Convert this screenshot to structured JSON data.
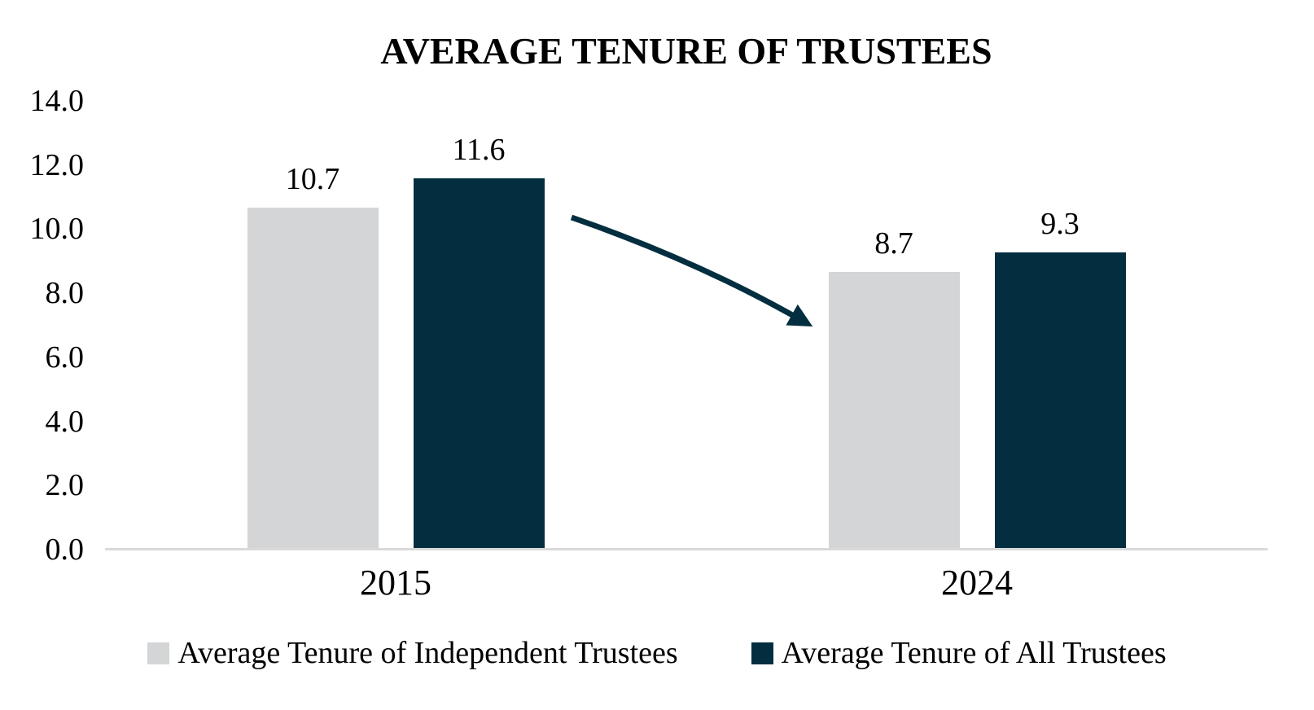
{
  "chart_data": {
    "type": "bar",
    "title": "AVERAGE TENURE OF TRUSTEES",
    "categories": [
      "2015",
      "2024"
    ],
    "series": [
      {
        "name": "Average Tenure of Independent Trustees",
        "color": "#d3d5d6",
        "values": [
          10.7,
          8.7
        ]
      },
      {
        "name": "Average Tenure of All Trustees",
        "color": "#032e40",
        "values": [
          11.6,
          9.3
        ]
      }
    ],
    "data_labels": [
      [
        "10.7",
        "11.6"
      ],
      [
        "8.7",
        "9.3"
      ]
    ],
    "ylim": [
      0,
      14
    ],
    "ytick_labels": [
      "0.0",
      "2.0",
      "4.0",
      "6.0",
      "8.0",
      "10.0",
      "12.0",
      "14.0"
    ],
    "grid": false,
    "legend_position": "bottom",
    "axis_line_color": "#d9d9d9",
    "text_color": "#000000",
    "annotation": {
      "type": "arrow",
      "description": "downward trend arrow from 2015 bars to 2024 bars",
      "color": "#032e40"
    }
  }
}
